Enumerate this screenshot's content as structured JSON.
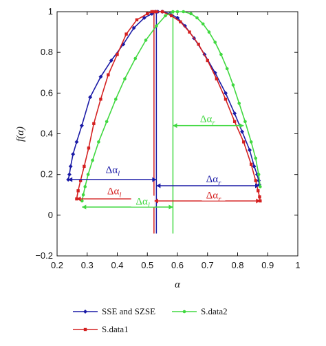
{
  "chart_data": {
    "type": "line",
    "xlabel": "α",
    "ylabel": "f(α)",
    "xlim": [
      0.2,
      1.0
    ],
    "ylim": [
      -0.2,
      1.0
    ],
    "xticks": [
      "0.2",
      "0.3",
      "0.4",
      "0.5",
      "0.6",
      "0.7",
      "0.8",
      "0.9",
      "1"
    ],
    "yticks": [
      "−0.2",
      "0",
      "0.2",
      "0.4",
      "0.6",
      "0.8",
      "1"
    ],
    "grid": false,
    "legend_position": "bottom",
    "series": [
      {
        "name": "SSE and SZSE",
        "color": "#1a1aa6",
        "marker": "diamond",
        "x": [
          0.237,
          0.241,
          0.245,
          0.253,
          0.265,
          0.282,
          0.31,
          0.345,
          0.38,
          0.42,
          0.455,
          0.49,
          0.515,
          0.528,
          0.535,
          0.55,
          0.575,
          0.6,
          0.625,
          0.655,
          0.69,
          0.725,
          0.76,
          0.79,
          0.815,
          0.84,
          0.855,
          0.865,
          0.87,
          0.872
        ],
        "y": [
          0.175,
          0.2,
          0.24,
          0.3,
          0.36,
          0.44,
          0.58,
          0.68,
          0.76,
          0.84,
          0.92,
          0.97,
          0.99,
          1.0,
          1.0,
          1.0,
          0.99,
          0.97,
          0.93,
          0.87,
          0.79,
          0.7,
          0.6,
          0.5,
          0.41,
          0.32,
          0.24,
          0.2,
          0.17,
          0.15
        ]
      },
      {
        "name": "S.data1",
        "color": "#d42020",
        "marker": "square",
        "x": [
          0.265,
          0.27,
          0.278,
          0.29,
          0.305,
          0.322,
          0.345,
          0.37,
          0.4,
          0.43,
          0.465,
          0.5,
          0.515,
          0.52,
          0.53,
          0.55,
          0.58,
          0.61,
          0.64,
          0.67,
          0.7,
          0.73,
          0.76,
          0.79,
          0.82,
          0.845,
          0.86,
          0.868,
          0.873,
          0.875
        ],
        "y": [
          0.08,
          0.12,
          0.17,
          0.24,
          0.33,
          0.45,
          0.57,
          0.69,
          0.79,
          0.89,
          0.96,
          0.99,
          1.0,
          1.0,
          1.0,
          1.0,
          0.98,
          0.95,
          0.9,
          0.84,
          0.76,
          0.67,
          0.57,
          0.46,
          0.36,
          0.25,
          0.17,
          0.12,
          0.09,
          0.07
        ]
      },
      {
        "name": "S.data2",
        "color": "#40d840",
        "marker": "circle",
        "x": [
          0.283,
          0.287,
          0.293,
          0.303,
          0.318,
          0.338,
          0.365,
          0.395,
          0.425,
          0.46,
          0.495,
          0.53,
          0.56,
          0.585,
          0.6,
          0.62,
          0.645,
          0.665,
          0.685,
          0.705,
          0.725,
          0.745,
          0.765,
          0.785,
          0.805,
          0.825,
          0.845,
          0.86,
          0.87,
          0.875
        ],
        "y": [
          0.07,
          0.1,
          0.14,
          0.2,
          0.27,
          0.36,
          0.46,
          0.57,
          0.67,
          0.77,
          0.86,
          0.93,
          0.98,
          1.0,
          1.0,
          1.0,
          0.99,
          0.97,
          0.94,
          0.9,
          0.85,
          0.79,
          0.72,
          0.64,
          0.55,
          0.46,
          0.36,
          0.28,
          0.2,
          0.14
        ]
      }
    ],
    "vertical_lines": [
      {
        "x": 0.53,
        "y0": -0.09,
        "y1": 1.0,
        "color": "#1a1aa6"
      },
      {
        "x": 0.522,
        "y0": -0.09,
        "y1": 1.0,
        "color": "#d42020"
      },
      {
        "x": 0.585,
        "y0": -0.09,
        "y1": 1.0,
        "color": "#40d840"
      }
    ],
    "annotations": [
      {
        "label": "Δα",
        "sub": "l",
        "x1": 0.237,
        "x2": 0.53,
        "y": 0.175,
        "color": "#1a1aa6",
        "label_x": 0.385,
        "label_y": 0.2
      },
      {
        "label": "Δα",
        "sub": "r",
        "x1": 0.53,
        "x2": 0.872,
        "y": 0.145,
        "color": "#1a1aa6",
        "label_x": 0.72,
        "label_y": 0.155
      },
      {
        "label": "Δα",
        "sub": "l",
        "x1": 0.265,
        "x2": 0.522,
        "y": 0.08,
        "color": "#d42020",
        "label_x": 0.39,
        "label_y": 0.095
      },
      {
        "label": "Δα",
        "sub": "r",
        "x1": 0.522,
        "x2": 0.875,
        "y": 0.07,
        "color": "#d42020",
        "label_x": 0.72,
        "label_y": 0.075
      },
      {
        "label": "Δα",
        "sub": "l",
        "x1": 0.283,
        "x2": 0.585,
        "y": 0.04,
        "color": "#40d840",
        "label_x": 0.485,
        "label_y": 0.045
      },
      {
        "label": "Δα",
        "sub": "r",
        "x1": 0.585,
        "x2": 0.82,
        "y": 0.44,
        "color": "#40d840",
        "label_x": 0.7,
        "label_y": 0.45
      }
    ]
  }
}
